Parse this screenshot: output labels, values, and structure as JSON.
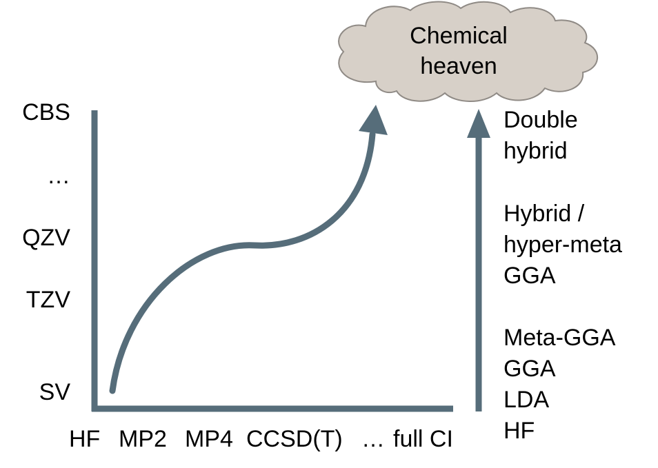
{
  "cloud": {
    "line1": "Chemical",
    "line2": "heaven"
  },
  "y_axis": {
    "labels": [
      "CBS",
      "…",
      "QZV",
      "TZV",
      "SV"
    ]
  },
  "x_axis": {
    "labels": [
      "HF",
      "MP2",
      "MP4",
      "CCSD(T)",
      "…",
      "full CI"
    ]
  },
  "dft_ladder": {
    "groups": [
      [
        "Double",
        "hybrid"
      ],
      [
        "Hybrid /",
        "hyper-meta",
        "GGA"
      ],
      [
        "Meta-GGA",
        "GGA",
        "LDA",
        "HF"
      ]
    ]
  },
  "colors": {
    "arrow": "#566d7a",
    "cloud_fill": "#d7d0c8",
    "cloud_stroke": "#8f8a85",
    "text": "#000000"
  }
}
